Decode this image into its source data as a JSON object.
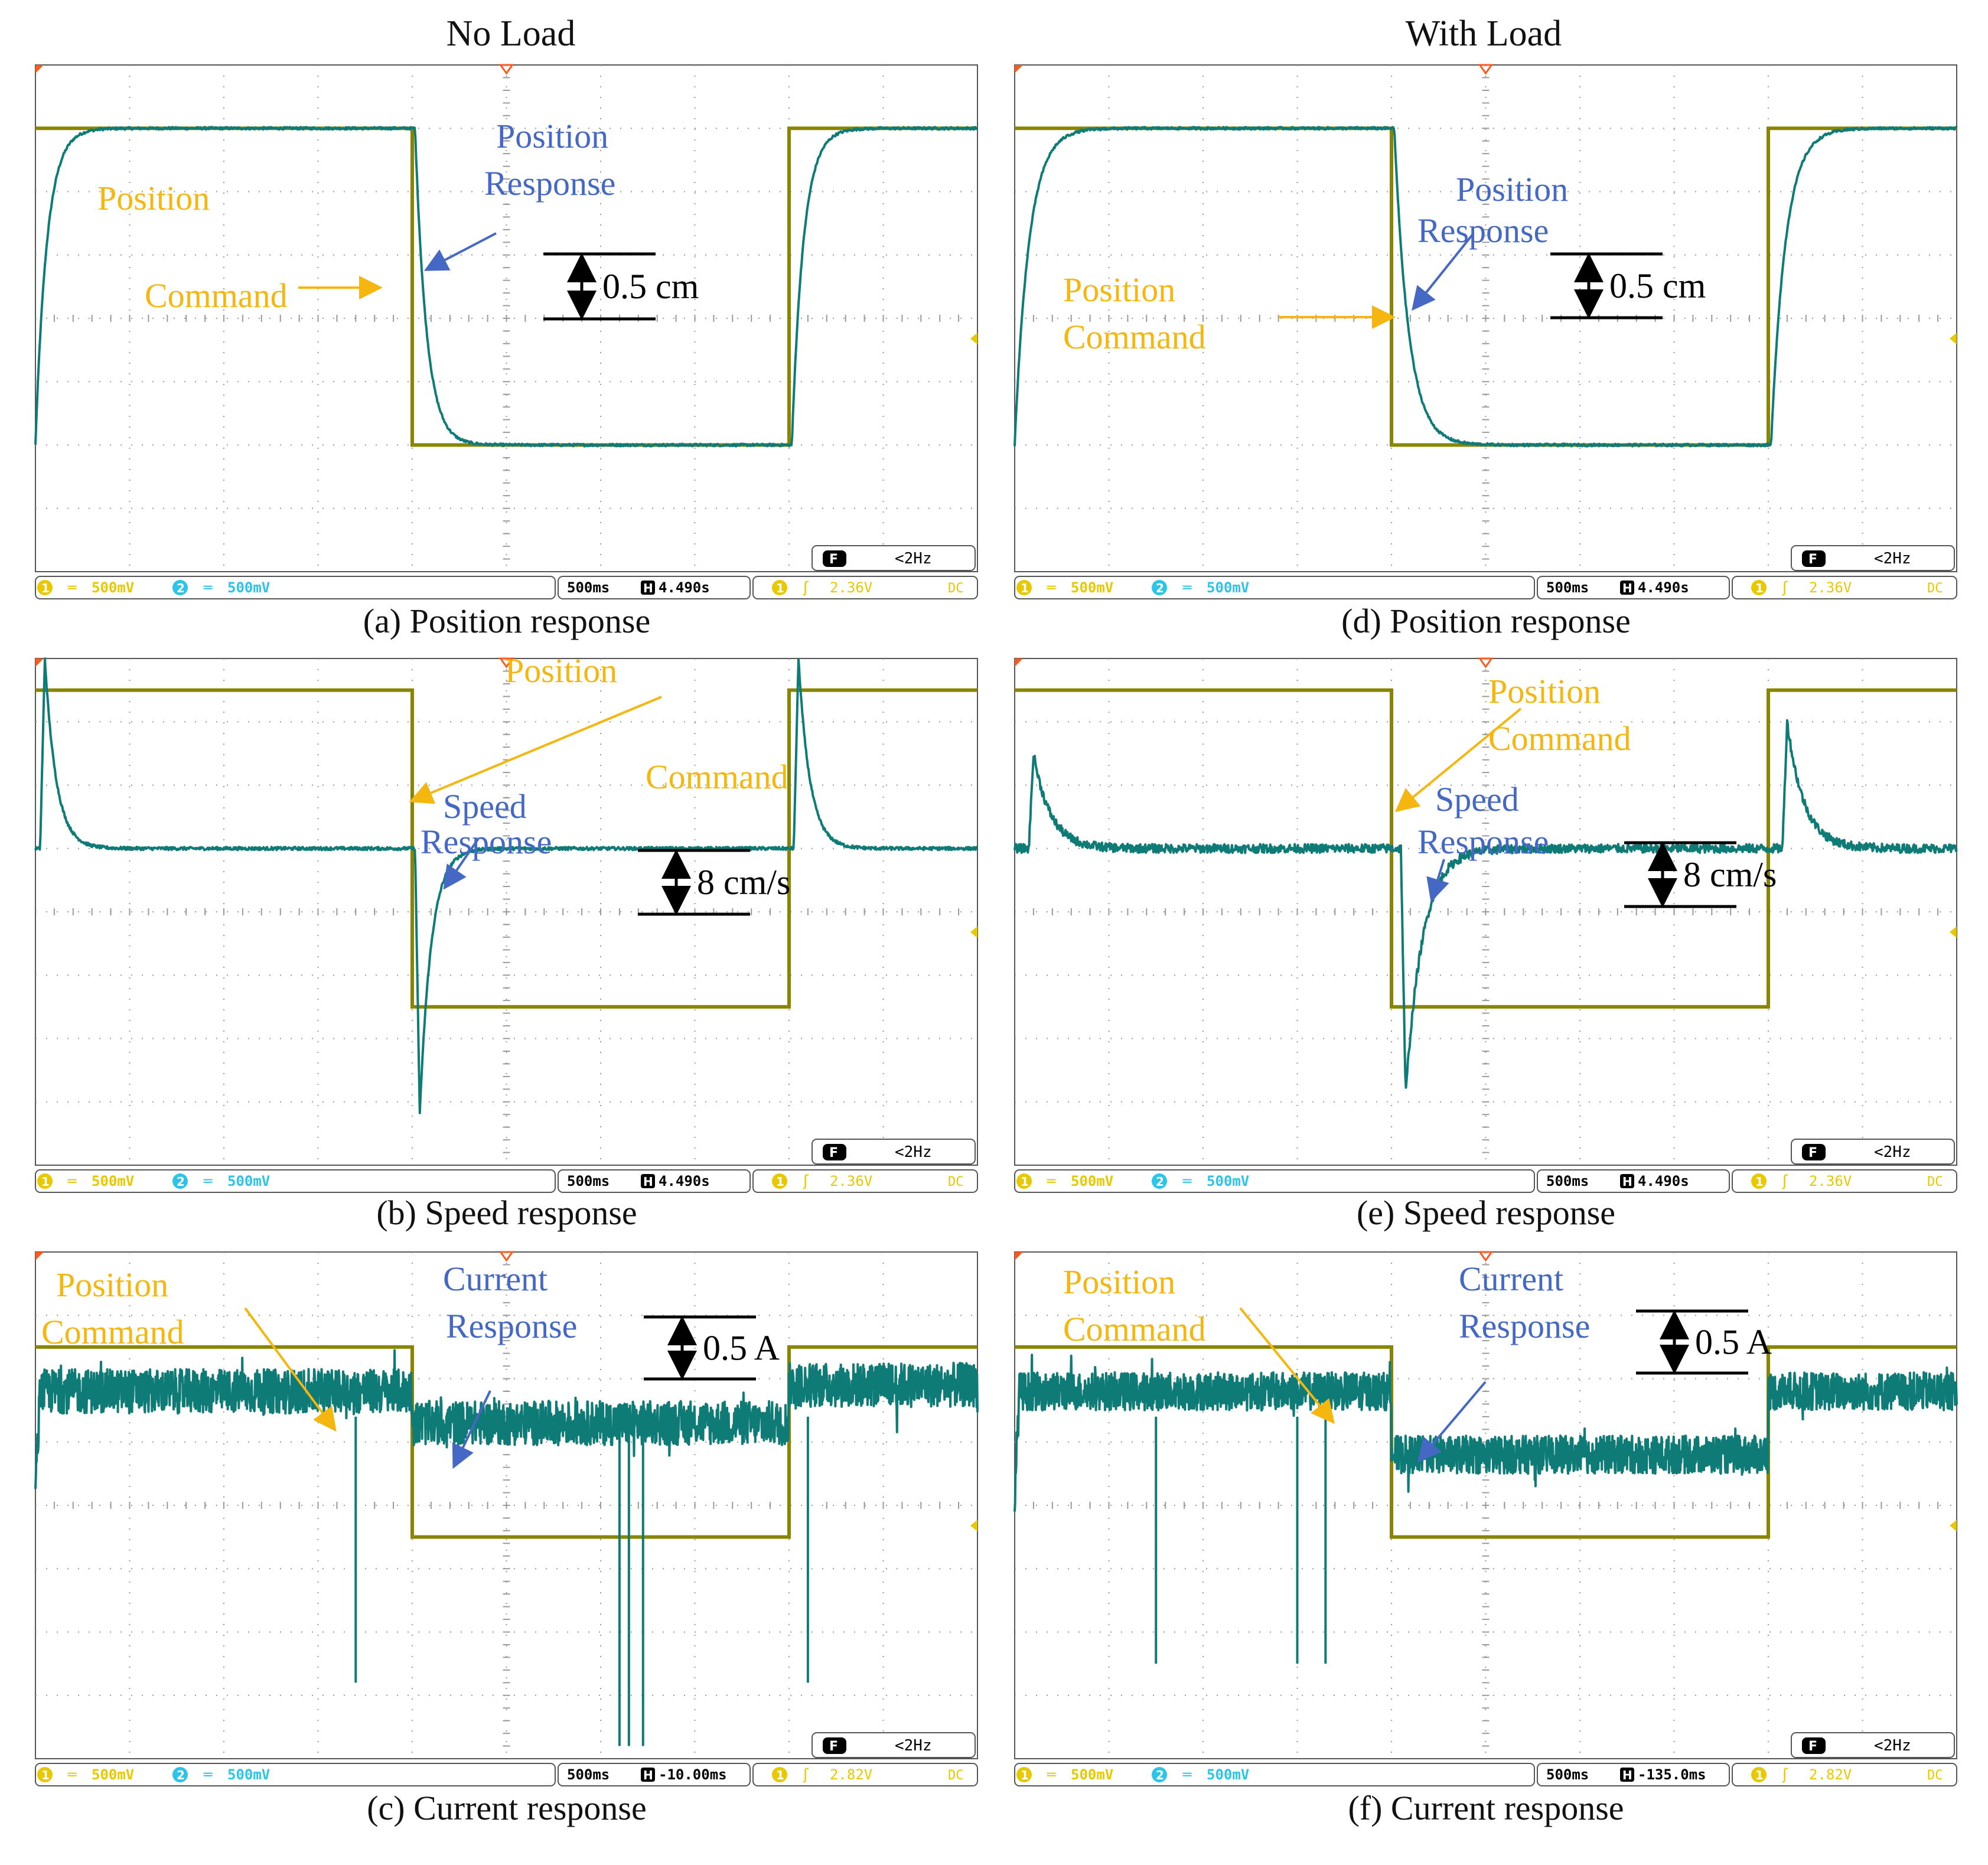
{
  "columns": [
    {
      "title": "No Load"
    },
    {
      "title": "With Load"
    }
  ],
  "colors": {
    "command": "#8a8500",
    "response": "#0f7b76",
    "label_command": "#f5b70f",
    "label_response": "#4468c4",
    "grid": "#9a9a9a",
    "frame": "#555555",
    "status_ch1": "#e8c800",
    "status_ch2": "#2cc4e8",
    "marker": "#ff5a1e"
  },
  "chart_data": [
    {
      "id": "a",
      "type": "line",
      "caption": "(a) Position response",
      "x": {
        "divisions": 10,
        "units_per_div": "500ms"
      },
      "ylim": [
        0,
        8
      ],
      "series": [
        {
          "name": "Position Command",
          "points": [
            [
              0,
              7
            ],
            [
              4,
              7
            ],
            [
              4,
              2
            ],
            [
              8,
              2
            ],
            [
              8,
              7
            ],
            [
              10,
              7
            ]
          ]
        },
        {
          "name": "Position Response",
          "shape": "first_order",
          "start": 2,
          "high": 7,
          "low": 2,
          "tau": 0.12,
          "edges": [
            [
              0,
              7
            ],
            [
              4.03,
              2
            ],
            [
              8.03,
              7
            ]
          ]
        }
      ],
      "labels": {
        "command": [
          "Position",
          "Command"
        ],
        "response": [
          "Position",
          "Response"
        ]
      },
      "scale_bar": "0.5 cm",
      "status": {
        "ch1": "500mV",
        "ch2": "500mV",
        "ch1_num": "1",
        "ch2_num": "2",
        "timebase": "500ms",
        "offset": "4.490s",
        "trigger_level": "2.36V",
        "coupling": "DC",
        "freq": "<2Hz",
        "f_icon": "F"
      }
    },
    {
      "id": "b",
      "type": "line",
      "caption": "(b) Speed response",
      "x": {
        "divisions": 10,
        "units_per_div": "500ms"
      },
      "ylim": [
        0,
        8
      ],
      "series": [
        {
          "name": "Position Command",
          "points": [
            [
              0,
              7.5
            ],
            [
              4,
              7.5
            ],
            [
              4,
              2.5
            ],
            [
              8,
              2.5
            ],
            [
              8,
              7.5
            ],
            [
              10,
              7.5
            ]
          ]
        },
        {
          "name": "Speed Response",
          "shape": "spikes",
          "baseline": 5,
          "spikes": [
            [
              0.1,
              8,
              0.12
            ],
            [
              4.08,
              0.8,
              0.12
            ],
            [
              8.1,
              8,
              0.12
            ]
          ]
        }
      ],
      "labels": {
        "command": [
          "Position",
          "Command"
        ],
        "response": [
          "Speed",
          "Response"
        ]
      },
      "scale_bar": "8 cm/s",
      "status": {
        "ch1": "500mV",
        "ch2": "500mV",
        "ch1_num": "1",
        "ch2_num": "2",
        "timebase": "500ms",
        "offset": "4.490s",
        "trigger_level": "2.36V",
        "coupling": "DC",
        "freq": "<2Hz",
        "f_icon": "F"
      }
    },
    {
      "id": "c",
      "type": "line",
      "caption": "(c) Current response",
      "x": {
        "divisions": 10,
        "units_per_div": "500ms"
      },
      "ylim": [
        0,
        8
      ],
      "series": [
        {
          "name": "Position Command",
          "points": [
            [
              0,
              6.5
            ],
            [
              4,
              6.5
            ],
            [
              4,
              3.5
            ],
            [
              8,
              3.5
            ],
            [
              8,
              6.5
            ],
            [
              10,
              6.5
            ]
          ]
        },
        {
          "name": "Current Response",
          "shape": "noisy",
          "levels": [
            [
              0,
              4,
              5.8
            ],
            [
              4,
              8,
              5.3
            ],
            [
              8,
              10,
              5.9
            ]
          ],
          "noise": 0.35,
          "spikes": [
            3.4,
            6.2,
            6.3,
            6.45,
            8.2
          ]
        }
      ],
      "labels": {
        "command": [
          "Position",
          "Command"
        ],
        "response": [
          "Current",
          "Response"
        ]
      },
      "scale_bar": "0.5 A",
      "status": {
        "ch1": "500mV",
        "ch2": "500mV",
        "ch1_num": "1",
        "ch2_num": "2",
        "timebase": "500ms",
        "offset": "-10.00ms",
        "trigger_level": "2.82V",
        "coupling": "DC",
        "freq": "<2Hz",
        "f_icon": "F"
      }
    },
    {
      "id": "d",
      "type": "line",
      "caption": "(d) Position response",
      "x": {
        "divisions": 10,
        "units_per_div": "500ms"
      },
      "ylim": [
        0,
        8
      ],
      "series": [
        {
          "name": "Position Command",
          "points": [
            [
              0,
              7
            ],
            [
              4,
              7
            ],
            [
              4,
              2
            ],
            [
              8,
              2
            ],
            [
              8,
              7
            ],
            [
              10,
              7
            ]
          ]
        },
        {
          "name": "Position Response",
          "shape": "first_order",
          "start": 2,
          "high": 7,
          "low": 2,
          "tau": 0.15,
          "edges": [
            [
              0,
              7
            ],
            [
              4.03,
              2
            ],
            [
              8.03,
              7
            ]
          ]
        }
      ],
      "labels": {
        "command": [
          "Position",
          "Command"
        ],
        "response": [
          "Position",
          "Response"
        ]
      },
      "scale_bar": "0.5 cm",
      "status": {
        "ch1": "500mV",
        "ch2": "500mV",
        "ch1_num": "1",
        "ch2_num": "2",
        "timebase": "500ms",
        "offset": "4.490s",
        "trigger_level": "2.36V",
        "coupling": "DC",
        "freq": "<2Hz",
        "f_icon": "F"
      }
    },
    {
      "id": "e",
      "type": "line",
      "caption": "(e) Speed response",
      "x": {
        "divisions": 10,
        "units_per_div": "500ms"
      },
      "ylim": [
        0,
        8
      ],
      "series": [
        {
          "name": "Position Command",
          "points": [
            [
              0,
              7.5
            ],
            [
              4,
              7.5
            ],
            [
              4,
              2.5
            ],
            [
              8,
              2.5
            ],
            [
              8,
              7.5
            ],
            [
              10,
              7.5
            ]
          ]
        },
        {
          "name": "Speed Response",
          "shape": "spikes",
          "baseline": 5,
          "spikes": [
            [
              0.2,
              6.5,
              0.18
            ],
            [
              4.15,
              1.1,
              0.18
            ],
            [
              8.2,
              7,
              0.18
            ]
          ]
        }
      ],
      "labels": {
        "command": [
          "Position",
          "Command"
        ],
        "response": [
          "Speed",
          "Response"
        ]
      },
      "scale_bar": "8 cm/s",
      "status": {
        "ch1": "500mV",
        "ch2": "500mV",
        "ch1_num": "1",
        "ch2_num": "2",
        "timebase": "500ms",
        "offset": "4.490s",
        "trigger_level": "2.36V",
        "coupling": "DC",
        "freq": "<2Hz",
        "f_icon": "F"
      }
    },
    {
      "id": "f",
      "type": "line",
      "caption": "(f) Current response",
      "x": {
        "divisions": 10,
        "units_per_div": "500ms"
      },
      "ylim": [
        0,
        8
      ],
      "series": [
        {
          "name": "Position Command",
          "points": [
            [
              0,
              6.5
            ],
            [
              4,
              6.5
            ],
            [
              4,
              3.5
            ],
            [
              8,
              3.5
            ],
            [
              8,
              6.5
            ],
            [
              10,
              6.5
            ]
          ]
        },
        {
          "name": "Current Response",
          "shape": "noisy",
          "levels": [
            [
              0,
              4,
              5.8
            ],
            [
              4,
              8,
              4.8
            ],
            [
              8,
              10,
              5.8
            ]
          ],
          "noise": 0.3,
          "spikes": [
            1.5,
            3.0,
            3.3
          ]
        }
      ],
      "labels": {
        "command": [
          "Position",
          "Command"
        ],
        "response": [
          "Current",
          "Response"
        ]
      },
      "scale_bar": "0.5 A",
      "status": {
        "ch1": "500mV",
        "ch2": "500mV",
        "ch1_num": "1",
        "ch2_num": "2",
        "timebase": "500ms",
        "offset": "-135.0ms",
        "trigger_level": "2.82V",
        "coupling": "DC",
        "freq": "<2Hz",
        "f_icon": "F"
      }
    }
  ]
}
